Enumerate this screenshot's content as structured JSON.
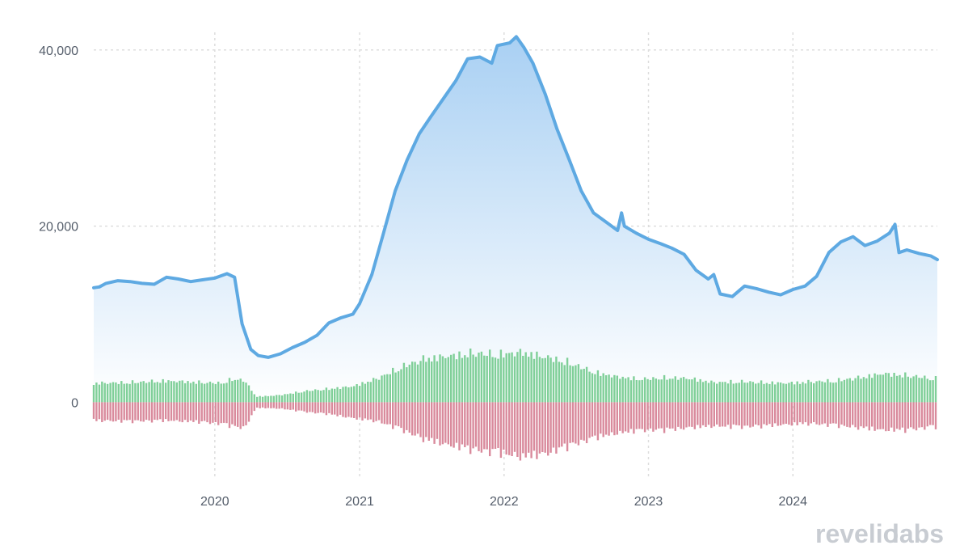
{
  "chart_data": {
    "type": "area",
    "title": "",
    "xlabel": "",
    "ylabel": "",
    "xlim": [
      "2019-03-01",
      "2024-12-31"
    ],
    "ylim": [
      -8500,
      42000
    ],
    "grid": true,
    "y_ticks": [
      {
        "value": 0,
        "label": "0"
      },
      {
        "value": 20000,
        "label": "20,000"
      },
      {
        "value": 40000,
        "label": "40,000"
      }
    ],
    "x_ticks": [
      {
        "date": "2020-01-01",
        "label": "2020"
      },
      {
        "date": "2021-01-01",
        "label": "2021"
      },
      {
        "date": "2022-01-01",
        "label": "2022"
      },
      {
        "date": "2023-01-01",
        "label": "2023"
      },
      {
        "date": "2024-01-01",
        "label": "2024"
      }
    ],
    "colors": {
      "line": "#5ea9e2",
      "area_top": "#a9d0f3",
      "area_bottom": "#ffffff",
      "positive_bars": "#7fcf98",
      "negative_bars": "#d98a9c",
      "grid": "#dddddd"
    },
    "series": [
      {
        "kind": "line",
        "x": [
          "2019-03-01",
          "2019-03-15",
          "2019-04-01",
          "2019-05-01",
          "2019-06-01",
          "2019-07-01",
          "2019-08-01",
          "2019-09-01",
          "2019-10-01",
          "2019-11-01",
          "2019-12-01",
          "2020-01-01",
          "2020-02-01",
          "2020-02-20",
          "2020-03-10",
          "2020-04-01",
          "2020-04-20",
          "2020-05-15",
          "2020-06-15",
          "2020-07-15",
          "2020-08-15",
          "2020-09-15",
          "2020-10-15",
          "2020-11-15",
          "2020-12-15",
          "2021-01-01",
          "2021-02-01",
          "2021-03-01",
          "2021-04-01",
          "2021-05-01",
          "2021-06-01",
          "2021-07-01",
          "2021-08-01",
          "2021-09-01",
          "2021-10-01",
          "2021-11-01",
          "2021-12-01",
          "2021-12-15",
          "2022-01-15",
          "2022-02-01",
          "2022-02-20",
          "2022-03-15",
          "2022-04-15",
          "2022-05-15",
          "2022-06-15",
          "2022-07-15",
          "2022-08-15",
          "2022-09-15",
          "2022-10-15",
          "2022-10-25",
          "2022-11-01",
          "2022-12-01",
          "2023-01-01",
          "2023-02-01",
          "2023-03-01",
          "2023-04-01",
          "2023-05-01",
          "2023-06-01",
          "2023-06-15",
          "2023-07-01",
          "2023-08-01",
          "2023-09-01",
          "2023-10-01",
          "2023-11-01",
          "2023-12-01",
          "2024-01-01",
          "2024-02-01",
          "2024-03-01",
          "2024-04-01",
          "2024-05-01",
          "2024-06-01",
          "2024-07-01",
          "2024-08-01",
          "2024-09-01",
          "2024-09-15",
          "2024-09-25",
          "2024-10-15",
          "2024-11-15",
          "2024-12-15",
          "2024-12-31"
        ],
        "values": [
          13000,
          13100,
          13500,
          13800,
          13700,
          13500,
          13400,
          14200,
          14000,
          13700,
          13900,
          14100,
          14600,
          14200,
          8900,
          6000,
          5300,
          5100,
          5500,
          6200,
          6800,
          7600,
          9000,
          9600,
          10000,
          11200,
          14500,
          19000,
          24000,
          27500,
          30500,
          32500,
          34500,
          36500,
          39000,
          39200,
          38500,
          40500,
          40800,
          41500,
          40300,
          38500,
          35000,
          31000,
          27500,
          24000,
          21500,
          20500,
          19500,
          21500,
          20000,
          19200,
          18500,
          18000,
          17500,
          16800,
          15000,
          14000,
          14500,
          12300,
          12000,
          13200,
          12900,
          12500,
          12200,
          12800,
          13200,
          14300,
          17000,
          18200,
          18800,
          17800,
          18300,
          19200,
          20200,
          17000,
          17300,
          16900,
          16600,
          16200
        ]
      },
      {
        "kind": "bars",
        "name": "positive",
        "x": [
          "2019-03-01",
          "2019-06-01",
          "2019-09-01",
          "2019-12-01",
          "2020-01-15",
          "2020-02-15",
          "2020-03-15",
          "2020-04-15",
          "2020-06-15",
          "2020-08-15",
          "2020-10-15",
          "2020-12-15",
          "2021-02-15",
          "2021-04-15",
          "2021-06-15",
          "2021-08-15",
          "2021-10-15",
          "2021-12-15",
          "2022-02-15",
          "2022-04-15",
          "2022-06-15",
          "2022-08-15",
          "2022-10-15",
          "2022-12-15",
          "2023-02-15",
          "2023-04-15",
          "2023-06-15",
          "2023-08-15",
          "2023-10-15",
          "2023-12-15",
          "2024-02-15",
          "2024-04-15",
          "2024-06-15",
          "2024-08-15",
          "2024-10-15",
          "2024-12-15"
        ],
        "values": [
          2400,
          2500,
          2700,
          2500,
          2400,
          2900,
          2800,
          700,
          900,
          1400,
          1700,
          2000,
          3000,
          4400,
          5500,
          5800,
          6200,
          6000,
          6300,
          5700,
          5000,
          3800,
          3200,
          2900,
          3100,
          3000,
          2500,
          2600,
          2500,
          2400,
          2600,
          2700,
          3100,
          3600,
          3400,
          3000
        ]
      },
      {
        "kind": "bars",
        "name": "negative",
        "x": [
          "2019-03-01",
          "2019-06-01",
          "2019-09-01",
          "2019-12-01",
          "2020-01-15",
          "2020-02-15",
          "2020-03-15",
          "2020-04-15",
          "2020-06-15",
          "2020-08-15",
          "2020-10-15",
          "2020-12-15",
          "2021-02-15",
          "2021-04-15",
          "2021-06-15",
          "2021-08-15",
          "2021-10-15",
          "2021-12-15",
          "2022-02-15",
          "2022-04-15",
          "2022-06-15",
          "2022-08-15",
          "2022-10-15",
          "2022-12-15",
          "2023-02-15",
          "2023-04-15",
          "2023-06-15",
          "2023-08-15",
          "2023-10-15",
          "2023-12-15",
          "2024-02-15",
          "2024-04-15",
          "2024-06-15",
          "2024-08-15",
          "2024-10-15",
          "2024-12-15"
        ],
        "values": [
          -2300,
          -2400,
          -2300,
          -2500,
          -2700,
          -3000,
          -3300,
          -700,
          -800,
          -1200,
          -1500,
          -2000,
          -2400,
          -3400,
          -4700,
          -5400,
          -6000,
          -6300,
          -6900,
          -6500,
          -5500,
          -4500,
          -3900,
          -3500,
          -3500,
          -3200,
          -3000,
          -3100,
          -3000,
          -2800,
          -2700,
          -2900,
          -3200,
          -3500,
          -3500,
          -3100
        ]
      }
    ]
  },
  "brand": {
    "text_left": "revelio",
    "text_right": "labs"
  }
}
